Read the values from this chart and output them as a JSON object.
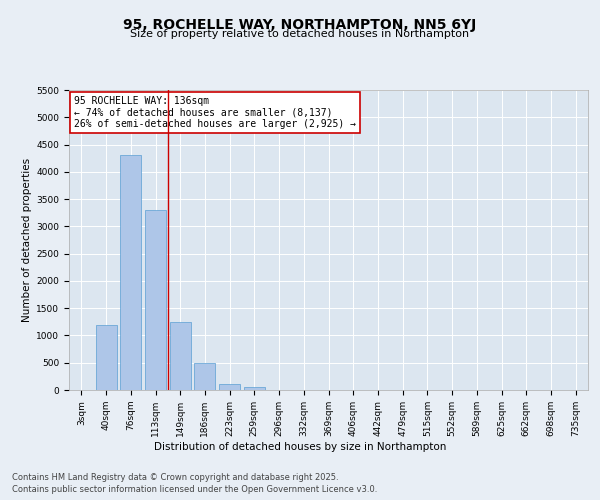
{
  "title": "95, ROCHELLE WAY, NORTHAMPTON, NN5 6YJ",
  "subtitle": "Size of property relative to detached houses in Northampton",
  "xlabel": "Distribution of detached houses by size in Northampton",
  "ylabel": "Number of detached properties",
  "categories": [
    "3sqm",
    "40sqm",
    "76sqm",
    "113sqm",
    "149sqm",
    "186sqm",
    "223sqm",
    "259sqm",
    "296sqm",
    "332sqm",
    "369sqm",
    "406sqm",
    "442sqm",
    "479sqm",
    "515sqm",
    "552sqm",
    "589sqm",
    "625sqm",
    "662sqm",
    "698sqm",
    "735sqm"
  ],
  "values": [
    0,
    1200,
    4300,
    3300,
    1250,
    500,
    110,
    50,
    0,
    0,
    0,
    0,
    0,
    0,
    0,
    0,
    0,
    0,
    0,
    0,
    0
  ],
  "bar_color": "#aec6e8",
  "bar_edge_color": "#5a9fd4",
  "vline_x_index": 3.5,
  "vline_color": "#cc0000",
  "annotation_text": "95 ROCHELLE WAY: 136sqm\n← 74% of detached houses are smaller (8,137)\n26% of semi-detached houses are larger (2,925) →",
  "annotation_box_color": "#ffffff",
  "annotation_box_edge": "#cc0000",
  "background_color": "#e8eef5",
  "plot_bg_color": "#dce6f0",
  "grid_color": "#ffffff",
  "ylim": [
    0,
    5500
  ],
  "yticks": [
    0,
    500,
    1000,
    1500,
    2000,
    2500,
    3000,
    3500,
    4000,
    4500,
    5000,
    5500
  ],
  "footer_line1": "Contains HM Land Registry data © Crown copyright and database right 2025.",
  "footer_line2": "Contains public sector information licensed under the Open Government Licence v3.0.",
  "title_fontsize": 10,
  "subtitle_fontsize": 8,
  "axis_label_fontsize": 7.5,
  "tick_fontsize": 6.5,
  "annotation_fontsize": 7,
  "footer_fontsize": 6
}
